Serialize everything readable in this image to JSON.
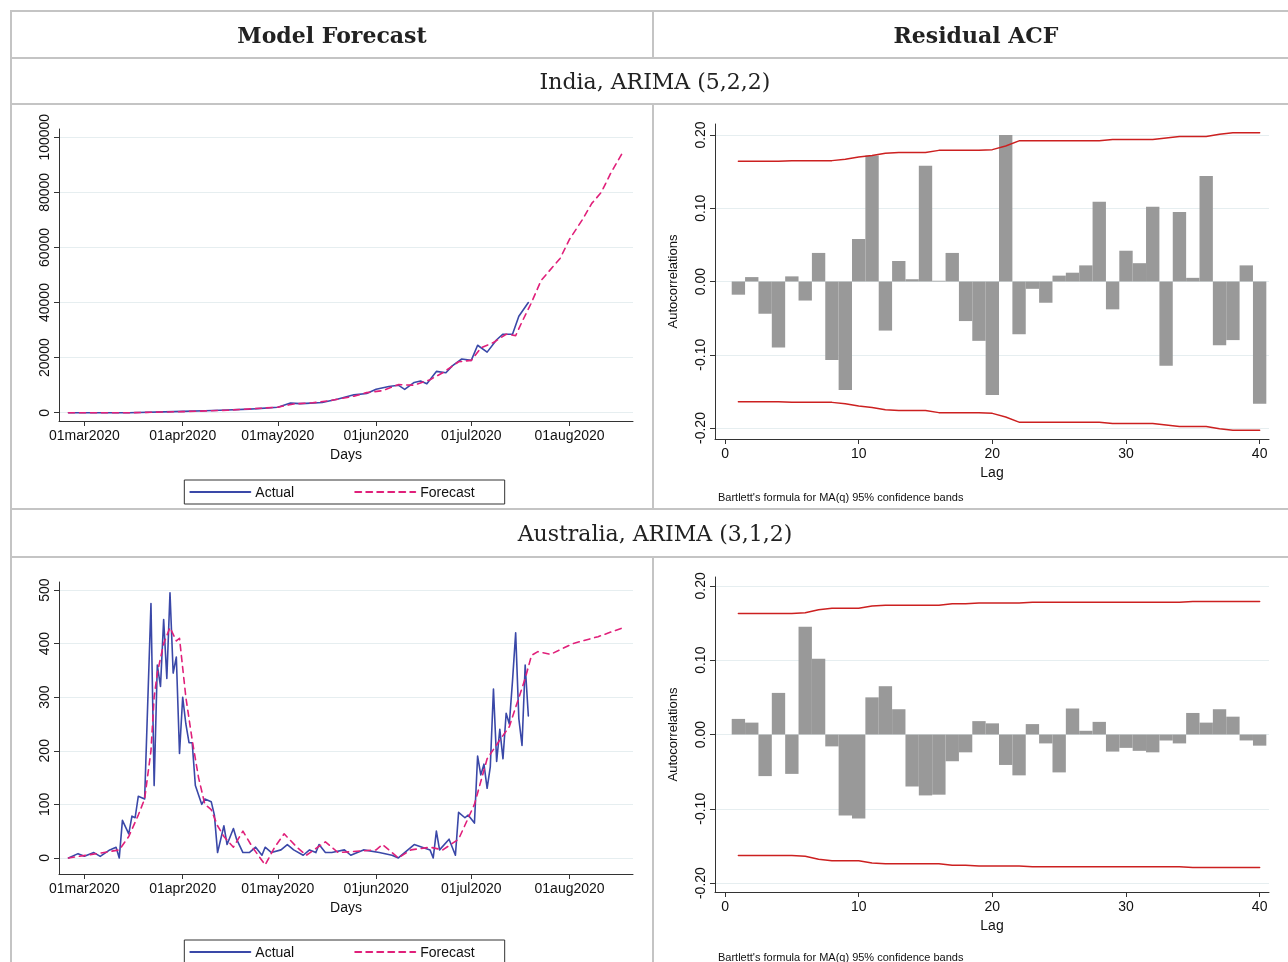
{
  "chart_data": [
    {
      "type": "line",
      "title": "Model Forecast",
      "subtitle": "India, ARIMA (5,2,2)",
      "xlabel": "Days",
      "legend": "bottom",
      "grid": "y",
      "marker": "none",
      "xlim": [
        "2020-02-22",
        "2020-08-21"
      ],
      "xticks": [
        {
          "value": "2020-03-01",
          "label": "01mar2020"
        },
        {
          "value": "2020-04-01",
          "label": "01apr2020"
        },
        {
          "value": "2020-05-01",
          "label": "01may2020"
        },
        {
          "value": "2020-06-01",
          "label": "01jun2020"
        },
        {
          "value": "2020-07-01",
          "label": "01jul2020"
        },
        {
          "value": "2020-08-01",
          "label": "01aug2020"
        }
      ],
      "ylim": [
        -3000,
        103000
      ],
      "yticks": [
        0,
        20000,
        40000,
        60000,
        80000,
        100000
      ],
      "series": [
        {
          "name": "Actual",
          "color": "#3a48a8",
          "line_style": "solid",
          "x": [
            "2020-02-25",
            "2020-03-15",
            "2020-04-01",
            "2020-04-08",
            "2020-04-15",
            "2020-04-22",
            "2020-05-01",
            "2020-05-05",
            "2020-05-08",
            "2020-05-10",
            "2020-05-15",
            "2020-05-20",
            "2020-05-25",
            "2020-05-29",
            "2020-06-01",
            "2020-06-05",
            "2020-06-08",
            "2020-06-10",
            "2020-06-13",
            "2020-06-15",
            "2020-06-17",
            "2020-06-20",
            "2020-06-23",
            "2020-06-25",
            "2020-06-28",
            "2020-07-01",
            "2020-07-03",
            "2020-07-06",
            "2020-07-09",
            "2020-07-11",
            "2020-07-14",
            "2020-07-16",
            "2020-07-19"
          ],
          "values": [
            0,
            0,
            500,
            700,
            1000,
            1300,
            2000,
            3500,
            3300,
            3400,
            3700,
            5000,
            6500,
            7000,
            8500,
            9500,
            10000,
            8500,
            11000,
            11500,
            10500,
            15000,
            14500,
            17000,
            19500,
            19000,
            24500,
            22000,
            26500,
            28500,
            28500,
            35000,
            40000
          ]
        },
        {
          "name": "Forecast",
          "color": "#e0207a",
          "line_style": "dashed",
          "x": [
            "2020-02-25",
            "2020-03-15",
            "2020-04-01",
            "2020-04-15",
            "2020-05-01",
            "2020-05-06",
            "2020-05-12",
            "2020-05-18",
            "2020-05-25",
            "2020-05-29",
            "2020-06-03",
            "2020-06-08",
            "2020-06-13",
            "2020-06-18",
            "2020-06-22",
            "2020-06-27",
            "2020-07-01",
            "2020-07-04",
            "2020-07-08",
            "2020-07-12",
            "2020-07-15",
            "2020-07-17",
            "2020-07-20",
            "2020-07-23",
            "2020-07-29",
            "2020-08-01",
            "2020-08-05",
            "2020-08-08",
            "2020-08-11",
            "2020-08-14",
            "2020-08-18"
          ],
          "values": [
            0,
            0,
            400,
            900,
            2000,
            3200,
            3600,
            4500,
            6000,
            7300,
            8000,
            10200,
            10000,
            12000,
            14500,
            18500,
            19000,
            23500,
            25500,
            28500,
            28000,
            33000,
            40000,
            48000,
            56000,
            63000,
            70000,
            76000,
            80000,
            87000,
            95000
          ]
        }
      ]
    },
    {
      "type": "bar",
      "title": "Residual ACF",
      "xlabel": "Lag",
      "ylabel": "Autocorrelations",
      "annotations": [
        "Bartlett's formula for MA(q) 95% confidence bands"
      ],
      "grid": "y",
      "xlim": [
        -0.75,
        40.7
      ],
      "xticks": [
        0,
        10,
        20,
        30,
        40
      ],
      "ylim": [
        -0.215,
        0.215
      ],
      "yticks": [
        {
          "value": -0.2,
          "label": "-0.20"
        },
        {
          "value": -0.1,
          "label": "-0.10"
        },
        {
          "value": 0,
          "label": "0.00"
        },
        {
          "value": 0.1,
          "label": "0.10"
        },
        {
          "value": 0.2,
          "label": "0.20"
        }
      ],
      "x": [
        1,
        2,
        3,
        4,
        5,
        6,
        7,
        8,
        9,
        10,
        11,
        12,
        13,
        14,
        15,
        16,
        17,
        18,
        19,
        20,
        21,
        22,
        23,
        24,
        25,
        26,
        27,
        28,
        29,
        30,
        31,
        32,
        33,
        34,
        35,
        36,
        37,
        38,
        39,
        40
      ],
      "series": [
        {
          "type": "bar",
          "color": "#999999",
          "values": [
            -0.018,
            0.006,
            -0.044,
            -0.09,
            0.007,
            -0.026,
            0.039,
            -0.107,
            -0.148,
            0.058,
            0.172,
            -0.067,
            0.028,
            0.003,
            0.158,
            0.001,
            0.039,
            -0.054,
            -0.081,
            -0.155,
            0.2,
            -0.072,
            -0.01,
            -0.029,
            0.008,
            0.012,
            0.022,
            0.109,
            -0.038,
            0.042,
            0.025,
            0.102,
            -0.115,
            0.095,
            0.005,
            0.144,
            -0.087,
            -0.08,
            0.022,
            -0.167
          ]
        },
        {
          "type": "line",
          "color": "#cc2020",
          "values": [
            0.164,
            0.164,
            0.164,
            0.164,
            0.165,
            0.165,
            0.165,
            0.165,
            0.167,
            0.17,
            0.172,
            0.175,
            0.176,
            0.176,
            0.176,
            0.179,
            0.179,
            0.179,
            0.179,
            0.18,
            0.185,
            0.192,
            0.192,
            0.192,
            0.192,
            0.192,
            0.192,
            0.192,
            0.194,
            0.194,
            0.194,
            0.194,
            0.196,
            0.198,
            0.198,
            0.198,
            0.201,
            0.203,
            0.203,
            0.203
          ]
        },
        {
          "type": "line",
          "color": "#cc2020",
          "values": [
            -0.164,
            -0.164,
            -0.164,
            -0.164,
            -0.165,
            -0.165,
            -0.165,
            -0.165,
            -0.167,
            -0.17,
            -0.172,
            -0.175,
            -0.176,
            -0.176,
            -0.176,
            -0.179,
            -0.179,
            -0.179,
            -0.179,
            -0.18,
            -0.185,
            -0.192,
            -0.192,
            -0.192,
            -0.192,
            -0.192,
            -0.192,
            -0.192,
            -0.194,
            -0.194,
            -0.194,
            -0.194,
            -0.196,
            -0.198,
            -0.198,
            -0.198,
            -0.201,
            -0.203,
            -0.203,
            -0.203
          ]
        }
      ]
    },
    {
      "type": "line",
      "subtitle": "Australia, ARIMA (3,1,2)",
      "xlabel": "Days",
      "legend": "bottom",
      "grid": "y",
      "marker": "none",
      "xlim": [
        "2020-02-22",
        "2020-08-21"
      ],
      "xticks": [
        {
          "value": "2020-03-01",
          "label": "01mar2020"
        },
        {
          "value": "2020-04-01",
          "label": "01apr2020"
        },
        {
          "value": "2020-05-01",
          "label": "01may2020"
        },
        {
          "value": "2020-06-01",
          "label": "01jun2020"
        },
        {
          "value": "2020-07-01",
          "label": "01jul2020"
        },
        {
          "value": "2020-08-01",
          "label": "01aug2020"
        }
      ],
      "ylim": [
        -30,
        515
      ],
      "yticks": [
        0,
        100,
        200,
        300,
        400,
        500
      ],
      "series": [
        {
          "name": "Actual",
          "color": "#3a48a8",
          "line_style": "solid",
          "x": [
            "2020-02-25",
            "2020-02-28",
            "2020-03-01",
            "2020-03-04",
            "2020-03-06",
            "2020-03-09",
            "2020-03-11",
            "2020-03-12",
            "2020-03-13",
            "2020-03-15",
            "2020-03-16",
            "2020-03-17",
            "2020-03-18",
            "2020-03-20",
            "2020-03-22",
            "2020-03-23",
            "2020-03-24",
            "2020-03-25",
            "2020-03-26",
            "2020-03-27",
            "2020-03-28",
            "2020-03-29",
            "2020-03-30",
            "2020-03-31",
            "2020-04-01",
            "2020-04-02",
            "2020-04-03",
            "2020-04-04",
            "2020-04-05",
            "2020-04-07",
            "2020-04-08",
            "2020-04-10",
            "2020-04-11",
            "2020-04-12",
            "2020-04-14",
            "2020-04-15",
            "2020-04-17",
            "2020-04-18",
            "2020-04-20",
            "2020-04-22",
            "2020-04-24",
            "2020-04-26",
            "2020-04-27",
            "2020-04-29",
            "2020-05-02",
            "2020-05-04",
            "2020-05-06",
            "2020-05-09",
            "2020-05-11",
            "2020-05-13",
            "2020-05-14",
            "2020-05-16",
            "2020-05-18",
            "2020-05-22",
            "2020-05-24",
            "2020-05-28",
            "2020-06-02",
            "2020-06-06",
            "2020-06-08",
            "2020-06-13",
            "2020-06-18",
            "2020-06-19",
            "2020-06-20",
            "2020-06-21",
            "2020-06-24",
            "2020-06-26",
            "2020-06-27",
            "2020-06-29",
            "2020-06-30",
            "2020-07-02",
            "2020-07-03",
            "2020-07-04",
            "2020-07-05",
            "2020-07-06",
            "2020-07-07",
            "2020-07-08",
            "2020-07-09",
            "2020-07-10",
            "2020-07-11",
            "2020-07-12",
            "2020-07-13",
            "2020-07-14",
            "2020-07-15",
            "2020-07-16",
            "2020-07-17",
            "2020-07-18",
            "2020-07-19"
          ],
          "values": [
            0,
            8,
            3,
            10,
            3,
            15,
            20,
            0,
            70,
            45,
            78,
            75,
            115,
            110,
            475,
            135,
            360,
            320,
            445,
            335,
            495,
            345,
            375,
            195,
            300,
            250,
            215,
            215,
            135,
            100,
            110,
            105,
            80,
            10,
            60,
            25,
            55,
            35,
            10,
            10,
            20,
            5,
            20,
            10,
            15,
            25,
            15,
            5,
            15,
            10,
            25,
            10,
            10,
            15,
            5,
            15,
            10,
            5,
            0,
            25,
            15,
            0,
            50,
            15,
            35,
            5,
            85,
            75,
            80,
            65,
            190,
            155,
            175,
            130,
            170,
            315,
            180,
            240,
            185,
            270,
            250,
            330,
            420,
            260,
            210,
            360,
            265
          ]
        },
        {
          "name": "Forecast",
          "color": "#e0207a",
          "line_style": "dashed",
          "x": [
            "2020-02-25",
            "2020-03-05",
            "2020-03-12",
            "2020-03-15",
            "2020-03-18",
            "2020-03-20",
            "2020-03-22",
            "2020-03-23",
            "2020-03-24",
            "2020-03-26",
            "2020-03-28",
            "2020-03-30",
            "2020-03-31",
            "2020-04-02",
            "2020-04-04",
            "2020-04-06",
            "2020-04-08",
            "2020-04-10",
            "2020-04-12",
            "2020-04-14",
            "2020-04-17",
            "2020-04-20",
            "2020-04-23",
            "2020-04-27",
            "2020-04-30",
            "2020-05-03",
            "2020-05-07",
            "2020-05-10",
            "2020-05-16",
            "2020-05-20",
            "2020-06-01",
            "2020-06-03",
            "2020-06-08",
            "2020-06-12",
            "2020-06-18",
            "2020-06-22",
            "2020-06-27",
            "2020-07-02",
            "2020-07-06",
            "2020-07-10",
            "2020-07-13",
            "2020-07-18",
            "2020-07-20",
            "2020-07-22",
            "2020-07-26",
            "2020-08-02",
            "2020-08-10",
            "2020-08-18"
          ],
          "values": [
            0,
            8,
            15,
            40,
            80,
            110,
            200,
            300,
            345,
            400,
            430,
            405,
            410,
            300,
            220,
            150,
            100,
            90,
            60,
            40,
            20,
            50,
            20,
            -13,
            20,
            45,
            20,
            5,
            30,
            10,
            15,
            25,
            0,
            15,
            20,
            15,
            35,
            100,
            185,
            220,
            245,
            335,
            378,
            385,
            380,
            400,
            413,
            430
          ]
        }
      ]
    },
    {
      "type": "bar",
      "xlabel": "Lag",
      "ylabel": "Autocorrelations",
      "annotations": [
        "Bartlett's formula for MA(q) 95% confidence bands"
      ],
      "grid": "y",
      "xlim": [
        -0.75,
        40.7
      ],
      "xticks": [
        0,
        10,
        20,
        30,
        40
      ],
      "ylim": [
        -0.212,
        0.212
      ],
      "yticks": [
        {
          "value": -0.2,
          "label": "-0.20"
        },
        {
          "value": -0.1,
          "label": "-0.10"
        },
        {
          "value": 0,
          "label": "0.00"
        },
        {
          "value": 0.1,
          "label": "0.10"
        },
        {
          "value": 0.2,
          "label": "0.20"
        }
      ],
      "x": [
        1,
        2,
        3,
        4,
        5,
        6,
        7,
        8,
        9,
        10,
        11,
        12,
        13,
        14,
        15,
        16,
        17,
        18,
        19,
        20,
        21,
        22,
        23,
        24,
        25,
        26,
        27,
        28,
        29,
        30,
        31,
        32,
        33,
        34,
        35,
        36,
        37,
        38,
        39,
        40
      ],
      "series": [
        {
          "type": "bar",
          "color": "#999999",
          "values": [
            0.021,
            0.016,
            -0.056,
            0.056,
            -0.053,
            0.145,
            0.102,
            -0.016,
            -0.109,
            -0.113,
            0.05,
            0.065,
            0.034,
            -0.07,
            -0.082,
            -0.081,
            -0.036,
            -0.024,
            0.018,
            0.015,
            -0.041,
            -0.055,
            0.014,
            -0.012,
            -0.051,
            0.035,
            0.005,
            0.017,
            -0.023,
            -0.018,
            -0.022,
            -0.024,
            -0.008,
            -0.012,
            0.029,
            0.016,
            0.034,
            0.024,
            -0.008,
            -0.015
          ]
        },
        {
          "type": "line",
          "color": "#cc2020",
          "values": [
            0.163,
            0.163,
            0.163,
            0.163,
            0.163,
            0.164,
            0.168,
            0.17,
            0.17,
            0.17,
            0.173,
            0.174,
            0.174,
            0.174,
            0.174,
            0.174,
            0.176,
            0.176,
            0.177,
            0.177,
            0.177,
            0.177,
            0.178,
            0.178,
            0.178,
            0.178,
            0.178,
            0.178,
            0.178,
            0.178,
            0.178,
            0.178,
            0.178,
            0.178,
            0.179,
            0.179,
            0.179,
            0.179,
            0.179,
            0.179
          ]
        },
        {
          "type": "line",
          "color": "#cc2020",
          "values": [
            -0.163,
            -0.163,
            -0.163,
            -0.163,
            -0.163,
            -0.164,
            -0.168,
            -0.17,
            -0.17,
            -0.17,
            -0.173,
            -0.174,
            -0.174,
            -0.174,
            -0.174,
            -0.174,
            -0.176,
            -0.176,
            -0.177,
            -0.177,
            -0.177,
            -0.177,
            -0.178,
            -0.178,
            -0.178,
            -0.178,
            -0.178,
            -0.178,
            -0.178,
            -0.178,
            -0.178,
            -0.178,
            -0.178,
            -0.178,
            -0.179,
            -0.179,
            -0.179,
            -0.179,
            -0.179,
            -0.179
          ]
        }
      ]
    }
  ]
}
